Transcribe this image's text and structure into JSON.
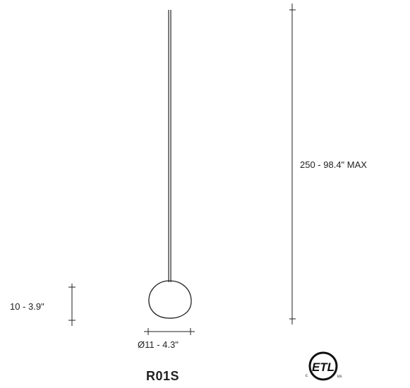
{
  "diagram": {
    "overall_height_label": "250 - 98.4\" MAX",
    "bulb_height_label": "10 - 3.9\"",
    "diameter_label": "Ø11 - 4.3\"",
    "model_name": "R01S",
    "certification": {
      "mark": "ETL",
      "left_mark": "c",
      "right_mark": "us"
    }
  },
  "colors": {
    "line": "#222222",
    "background": "#ffffff"
  }
}
